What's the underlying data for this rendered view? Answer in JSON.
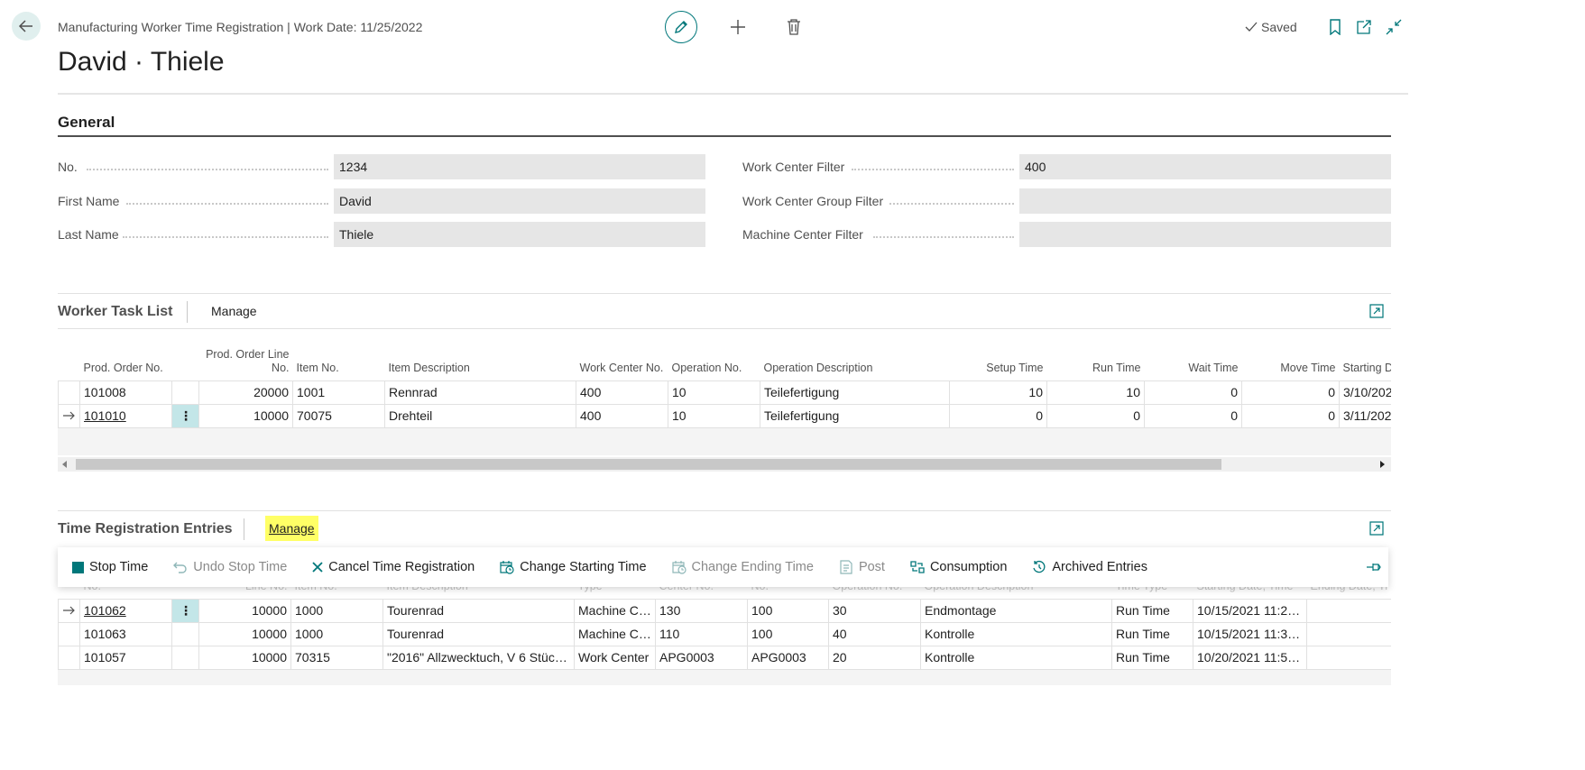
{
  "header": {
    "doc_title": "Manufacturing Worker Time Registration | Work Date: 11/25/2022",
    "page_title": "David · Thiele",
    "saved_label": "Saved"
  },
  "general": {
    "title": "General",
    "left_fields": [
      {
        "label": "No.",
        "value": "1234"
      },
      {
        "label": "First Name",
        "value": "David"
      },
      {
        "label": "Last Name",
        "value": "Thiele"
      }
    ],
    "right_fields": [
      {
        "label": "Work Center Filter",
        "value": "400"
      },
      {
        "label": "Work Center Group Filter",
        "value": ""
      },
      {
        "label": "Machine Center Filter",
        "value": ""
      }
    ]
  },
  "task_list": {
    "title": "Worker Task List",
    "action": "Manage",
    "columns": {
      "prod_order_no": "Prod. Order No.",
      "line_no": "Prod. Order Line No.",
      "item_no": "Item No.",
      "item_desc": "Item Description",
      "work_center_no": "Work Center No.",
      "operation_no": "Operation No.",
      "operation_desc": "Operation Description",
      "setup_time": "Setup Time",
      "run_time": "Run Time",
      "wait_time": "Wait Time",
      "move_time": "Move Time",
      "starting": "Starting D"
    },
    "rows": [
      {
        "prod_order_no": "101008",
        "line_no": "20000",
        "item_no": "1001",
        "item_desc": "Rennrad",
        "work_center_no": "400",
        "operation_no": "10",
        "operation_desc": "Teilefertigung",
        "setup_time": "10",
        "run_time": "10",
        "wait_time": "0",
        "move_time": "0",
        "starting": "3/10/202"
      },
      {
        "prod_order_no": "101010",
        "line_no": "10000",
        "item_no": "70075",
        "item_desc": "Drehteil",
        "work_center_no": "400",
        "operation_no": "10",
        "operation_desc": "Teilefertigung",
        "setup_time": "0",
        "run_time": "0",
        "wait_time": "0",
        "move_time": "0",
        "starting": "3/11/202"
      }
    ]
  },
  "time_entries": {
    "title": "Time Registration Entries",
    "action": "Manage",
    "toolbar": {
      "stop_time": "Stop Time",
      "undo_stop_time": "Undo Stop Time",
      "cancel": "Cancel Time Registration",
      "change_start": "Change Starting Time",
      "change_end": "Change Ending Time",
      "post": "Post",
      "consumption": "Consumption",
      "archived": "Archived Entries"
    },
    "columns": {
      "no": "No.",
      "line_no": "Line No.",
      "item_no": "Item No.",
      "item_desc": "Item Description",
      "type": "Type",
      "center_no": "Center No.",
      "no2": "No.",
      "operation_no": "Operation No.",
      "operation_desc": "Operation Description",
      "time_type": "Time Type",
      "starting": "Starting Date, Time",
      "ending": "Ending Date, Ti"
    },
    "rows": [
      {
        "no": "101062",
        "line_no": "10000",
        "item_no": "1000",
        "item_desc": "Tourenrad",
        "type": "Machine Ce...",
        "center_no": "130",
        "no2": "100",
        "operation_no": "30",
        "operation_desc": "Endmontage",
        "time_type": "Run Time",
        "starting": "10/15/2021 11:20...",
        "ending": ""
      },
      {
        "no": "101063",
        "line_no": "10000",
        "item_no": "1000",
        "item_desc": "Tourenrad",
        "type": "Machine Ce...",
        "center_no": "110",
        "no2": "100",
        "operation_no": "40",
        "operation_desc": "Kontrolle",
        "time_type": "Run Time",
        "starting": "10/15/2021 11:30...",
        "ending": ""
      },
      {
        "no": "101057",
        "line_no": "10000",
        "item_no": "70315",
        "item_desc": "\"2016\" Allzwecktuch, V 6 Stück ...",
        "type": "Work Center",
        "center_no": "APG0003",
        "no2": "APG0003",
        "operation_no": "20",
        "operation_desc": "Kontrolle",
        "time_type": "Run Time",
        "starting": "10/20/2021 11:54...",
        "ending": ""
      }
    ]
  }
}
